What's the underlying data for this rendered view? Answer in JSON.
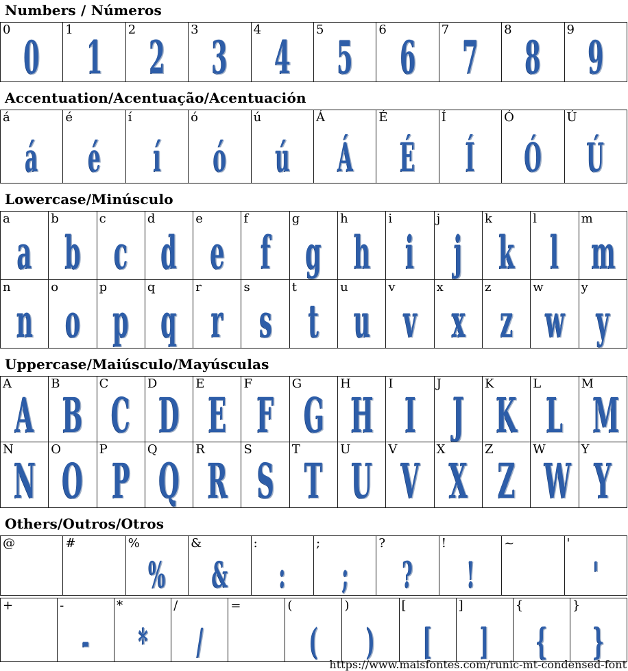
{
  "colors": {
    "glyph_blue": "#2d5da8",
    "glyph_shadow": "#a3b1c6"
  },
  "sections": [
    {
      "id": "numbers",
      "title": "Numbers / Números",
      "rows": [
        [
          "0",
          "1",
          "2",
          "3",
          "4",
          "5",
          "6",
          "7",
          "8",
          "9"
        ]
      ]
    },
    {
      "id": "accentuation",
      "title": "Accentuation/Acentuação/Acentuación",
      "rows": [
        [
          "á",
          "é",
          "í",
          "ó",
          "ú",
          "Á",
          "É",
          "Í",
          "Ó",
          "Ú"
        ]
      ]
    },
    {
      "id": "lowercase",
      "title": "Lowercase/Minúsculo",
      "rows": [
        [
          "a",
          "b",
          "c",
          "d",
          "e",
          "f",
          "g",
          "h",
          "i",
          "j",
          "k",
          "l",
          "m"
        ],
        [
          "n",
          "o",
          "p",
          "q",
          "r",
          "s",
          "t",
          "u",
          "v",
          "x",
          "z",
          "w",
          "y"
        ]
      ]
    },
    {
      "id": "uppercase",
      "title": "Uppercase/Maiúsculo/Mayúsculas",
      "rows": [
        [
          "A",
          "B",
          "C",
          "D",
          "E",
          "F",
          "G",
          "H",
          "I",
          "J",
          "K",
          "L",
          "M"
        ],
        [
          "N",
          "O",
          "P",
          "Q",
          "R",
          "S",
          "T",
          "U",
          "V",
          "X",
          "Z",
          "W",
          "Y"
        ]
      ]
    },
    {
      "id": "others",
      "title": "Others/Outros/Otros",
      "rows": [
        [
          "@",
          "#",
          "%",
          "&",
          ":",
          ";",
          "?",
          "!",
          "~",
          "'"
        ],
        [
          "+",
          "-",
          "*",
          "/",
          "=",
          "(",
          ")",
          "[",
          "]",
          "{",
          "}"
        ]
      ],
      "missing_glyphs": [
        "@",
        "#",
        "~",
        "+",
        "="
      ]
    }
  ],
  "footer": {
    "url": "https://www.maisfontes.com/runic-mt-condensed-font"
  }
}
